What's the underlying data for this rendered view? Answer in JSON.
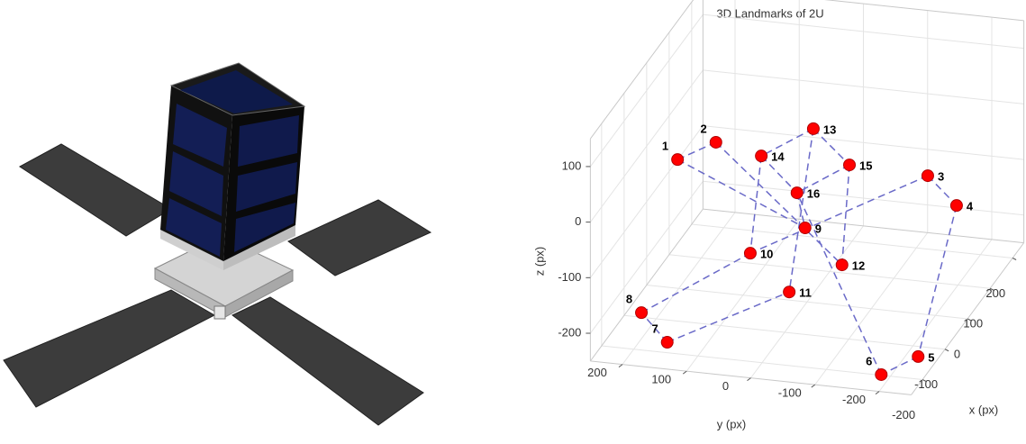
{
  "chart_data": {
    "type": "scatter3d",
    "title": "3D Landmarks of 2U",
    "xlabel": "x (px)",
    "ylabel": "y (px)",
    "zlabel": "z (px)",
    "xlim": [
      -250,
      250
    ],
    "ylim": [
      -250,
      250
    ],
    "zlim": [
      -250,
      150
    ],
    "xticks": [
      -200,
      -100,
      0,
      100,
      200
    ],
    "yticks": [
      -200,
      -100,
      0,
      100,
      200
    ],
    "zticks": [
      -200,
      -100,
      0,
      100
    ],
    "grid": true,
    "color": "#ff0000",
    "line_color": "#6a6ac8",
    "labels": [
      "1",
      "2",
      "3",
      "4",
      "5",
      "6",
      "7",
      "8",
      "9",
      "10",
      "11",
      "12",
      "13",
      "14",
      "15",
      "16"
    ],
    "x": [
      -31,
      34,
      0,
      88,
      -131,
      -198,
      -168,
      -86,
      -29,
      -124,
      -145,
      -130,
      22,
      -78,
      -77,
      -179
    ],
    "y": [
      191,
      154,
      -188,
      -202,
      -219,
      -185,
      159,
      228,
      -7,
      45,
      -23,
      -100,
      -2,
      44,
      -93,
      -47
    ],
    "z": [
      0,
      0,
      0,
      -100,
      -250,
      -250,
      -250,
      -250,
      -100,
      -100,
      -150,
      -100,
      50,
      50,
      50,
      50
    ],
    "edges": [
      [
        0,
        1
      ],
      [
        1,
        11
      ],
      [
        0,
        8
      ],
      [
        2,
        3
      ],
      [
        2,
        9
      ],
      [
        3,
        4
      ],
      [
        4,
        5
      ],
      [
        5,
        15
      ],
      [
        6,
        7
      ],
      [
        6,
        10
      ],
      [
        7,
        9
      ],
      [
        12,
        13
      ],
      [
        12,
        14
      ],
      [
        13,
        9
      ],
      [
        14,
        11
      ],
      [
        12,
        10
      ],
      [
        15,
        8
      ],
      [
        14,
        15
      ],
      [
        13,
        15
      ]
    ]
  }
}
